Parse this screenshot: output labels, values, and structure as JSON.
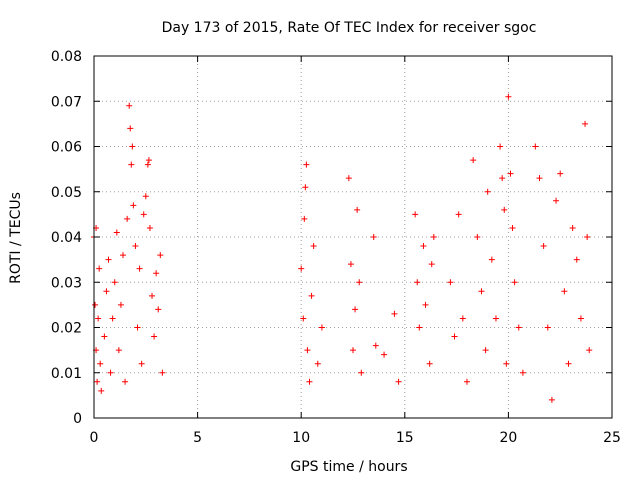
{
  "chart_data": {
    "type": "scatter",
    "title": "Day 173 of 2015, Rate Of TEC Index for receiver sgoc",
    "xlabel": "GPS time / hours",
    "ylabel": "ROTI / TECUs",
    "xlim": [
      0,
      25
    ],
    "ylim": [
      0,
      0.08
    ],
    "x_ticks": [
      0,
      5,
      10,
      15,
      20,
      25
    ],
    "y_ticks": [
      0,
      0.01,
      0.02,
      0.03,
      0.04,
      0.05,
      0.06,
      0.07,
      0.08
    ],
    "x_tick_labels": [
      "0",
      "5",
      "10",
      "15",
      "20",
      "25"
    ],
    "y_tick_labels": [
      "0",
      "0.01",
      "0.02",
      "0.03",
      "0.04",
      "0.05",
      "0.06",
      "0.07",
      "0.08"
    ],
    "grid": true,
    "marker": "+",
    "color": "#ff0000",
    "series": [
      {
        "name": "ROTI",
        "points": [
          [
            0.0,
            0.04
          ],
          [
            0.05,
            0.025
          ],
          [
            0.1,
            0.015
          ],
          [
            0.1,
            0.042
          ],
          [
            0.15,
            0.008
          ],
          [
            0.2,
            0.022
          ],
          [
            0.25,
            0.033
          ],
          [
            0.3,
            0.012
          ],
          [
            0.35,
            0.006
          ],
          [
            0.5,
            0.018
          ],
          [
            0.6,
            0.028
          ],
          [
            0.7,
            0.035
          ],
          [
            0.8,
            0.01
          ],
          [
            0.9,
            0.022
          ],
          [
            1.0,
            0.03
          ],
          [
            1.1,
            0.041
          ],
          [
            1.2,
            0.015
          ],
          [
            1.3,
            0.025
          ],
          [
            1.4,
            0.036
          ],
          [
            1.5,
            0.008
          ],
          [
            1.6,
            0.044
          ],
          [
            1.7,
            0.069
          ],
          [
            1.75,
            0.064
          ],
          [
            1.8,
            0.056
          ],
          [
            1.85,
            0.06
          ],
          [
            1.9,
            0.047
          ],
          [
            2.0,
            0.038
          ],
          [
            2.1,
            0.02
          ],
          [
            2.2,
            0.033
          ],
          [
            2.3,
            0.012
          ],
          [
            2.4,
            0.045
          ],
          [
            2.5,
            0.049
          ],
          [
            2.6,
            0.056
          ],
          [
            2.65,
            0.057
          ],
          [
            2.7,
            0.042
          ],
          [
            2.8,
            0.027
          ],
          [
            2.9,
            0.018
          ],
          [
            3.0,
            0.032
          ],
          [
            3.1,
            0.024
          ],
          [
            3.2,
            0.036
          ],
          [
            3.3,
            0.01
          ],
          [
            10.0,
            0.033
          ],
          [
            10.1,
            0.022
          ],
          [
            10.15,
            0.044
          ],
          [
            10.2,
            0.051
          ],
          [
            10.25,
            0.056
          ],
          [
            10.3,
            0.015
          ],
          [
            10.4,
            0.008
          ],
          [
            10.5,
            0.027
          ],
          [
            10.6,
            0.038
          ],
          [
            10.8,
            0.012
          ],
          [
            11.0,
            0.02
          ],
          [
            12.3,
            0.053
          ],
          [
            12.4,
            0.034
          ],
          [
            12.5,
            0.015
          ],
          [
            12.6,
            0.024
          ],
          [
            12.7,
            0.046
          ],
          [
            12.8,
            0.03
          ],
          [
            12.9,
            0.01
          ],
          [
            13.5,
            0.04
          ],
          [
            13.6,
            0.016
          ],
          [
            14.0,
            0.014
          ],
          [
            14.5,
            0.023
          ],
          [
            14.7,
            0.008
          ],
          [
            15.5,
            0.045
          ],
          [
            15.6,
            0.03
          ],
          [
            15.7,
            0.02
          ],
          [
            15.9,
            0.038
          ],
          [
            16.0,
            0.025
          ],
          [
            16.2,
            0.012
          ],
          [
            16.3,
            0.034
          ],
          [
            16.4,
            0.04
          ],
          [
            17.2,
            0.03
          ],
          [
            17.4,
            0.018
          ],
          [
            17.6,
            0.045
          ],
          [
            17.8,
            0.022
          ],
          [
            18.0,
            0.008
          ],
          [
            18.3,
            0.057
          ],
          [
            18.5,
            0.04
          ],
          [
            18.7,
            0.028
          ],
          [
            18.9,
            0.015
          ],
          [
            19.0,
            0.05
          ],
          [
            19.2,
            0.035
          ],
          [
            19.4,
            0.022
          ],
          [
            19.6,
            0.06
          ],
          [
            19.7,
            0.053
          ],
          [
            19.8,
            0.046
          ],
          [
            19.9,
            0.012
          ],
          [
            20.0,
            0.071
          ],
          [
            20.1,
            0.054
          ],
          [
            20.2,
            0.042
          ],
          [
            20.3,
            0.03
          ],
          [
            20.5,
            0.02
          ],
          [
            20.7,
            0.01
          ],
          [
            21.3,
            0.06
          ],
          [
            21.5,
            0.053
          ],
          [
            21.7,
            0.038
          ],
          [
            21.9,
            0.02
          ],
          [
            22.1,
            0.004
          ],
          [
            22.3,
            0.048
          ],
          [
            22.5,
            0.054
          ],
          [
            22.7,
            0.028
          ],
          [
            22.9,
            0.012
          ],
          [
            23.1,
            0.042
          ],
          [
            23.3,
            0.035
          ],
          [
            23.5,
            0.022
          ],
          [
            23.7,
            0.065
          ],
          [
            23.8,
            0.04
          ],
          [
            23.9,
            0.015
          ]
        ]
      }
    ]
  }
}
